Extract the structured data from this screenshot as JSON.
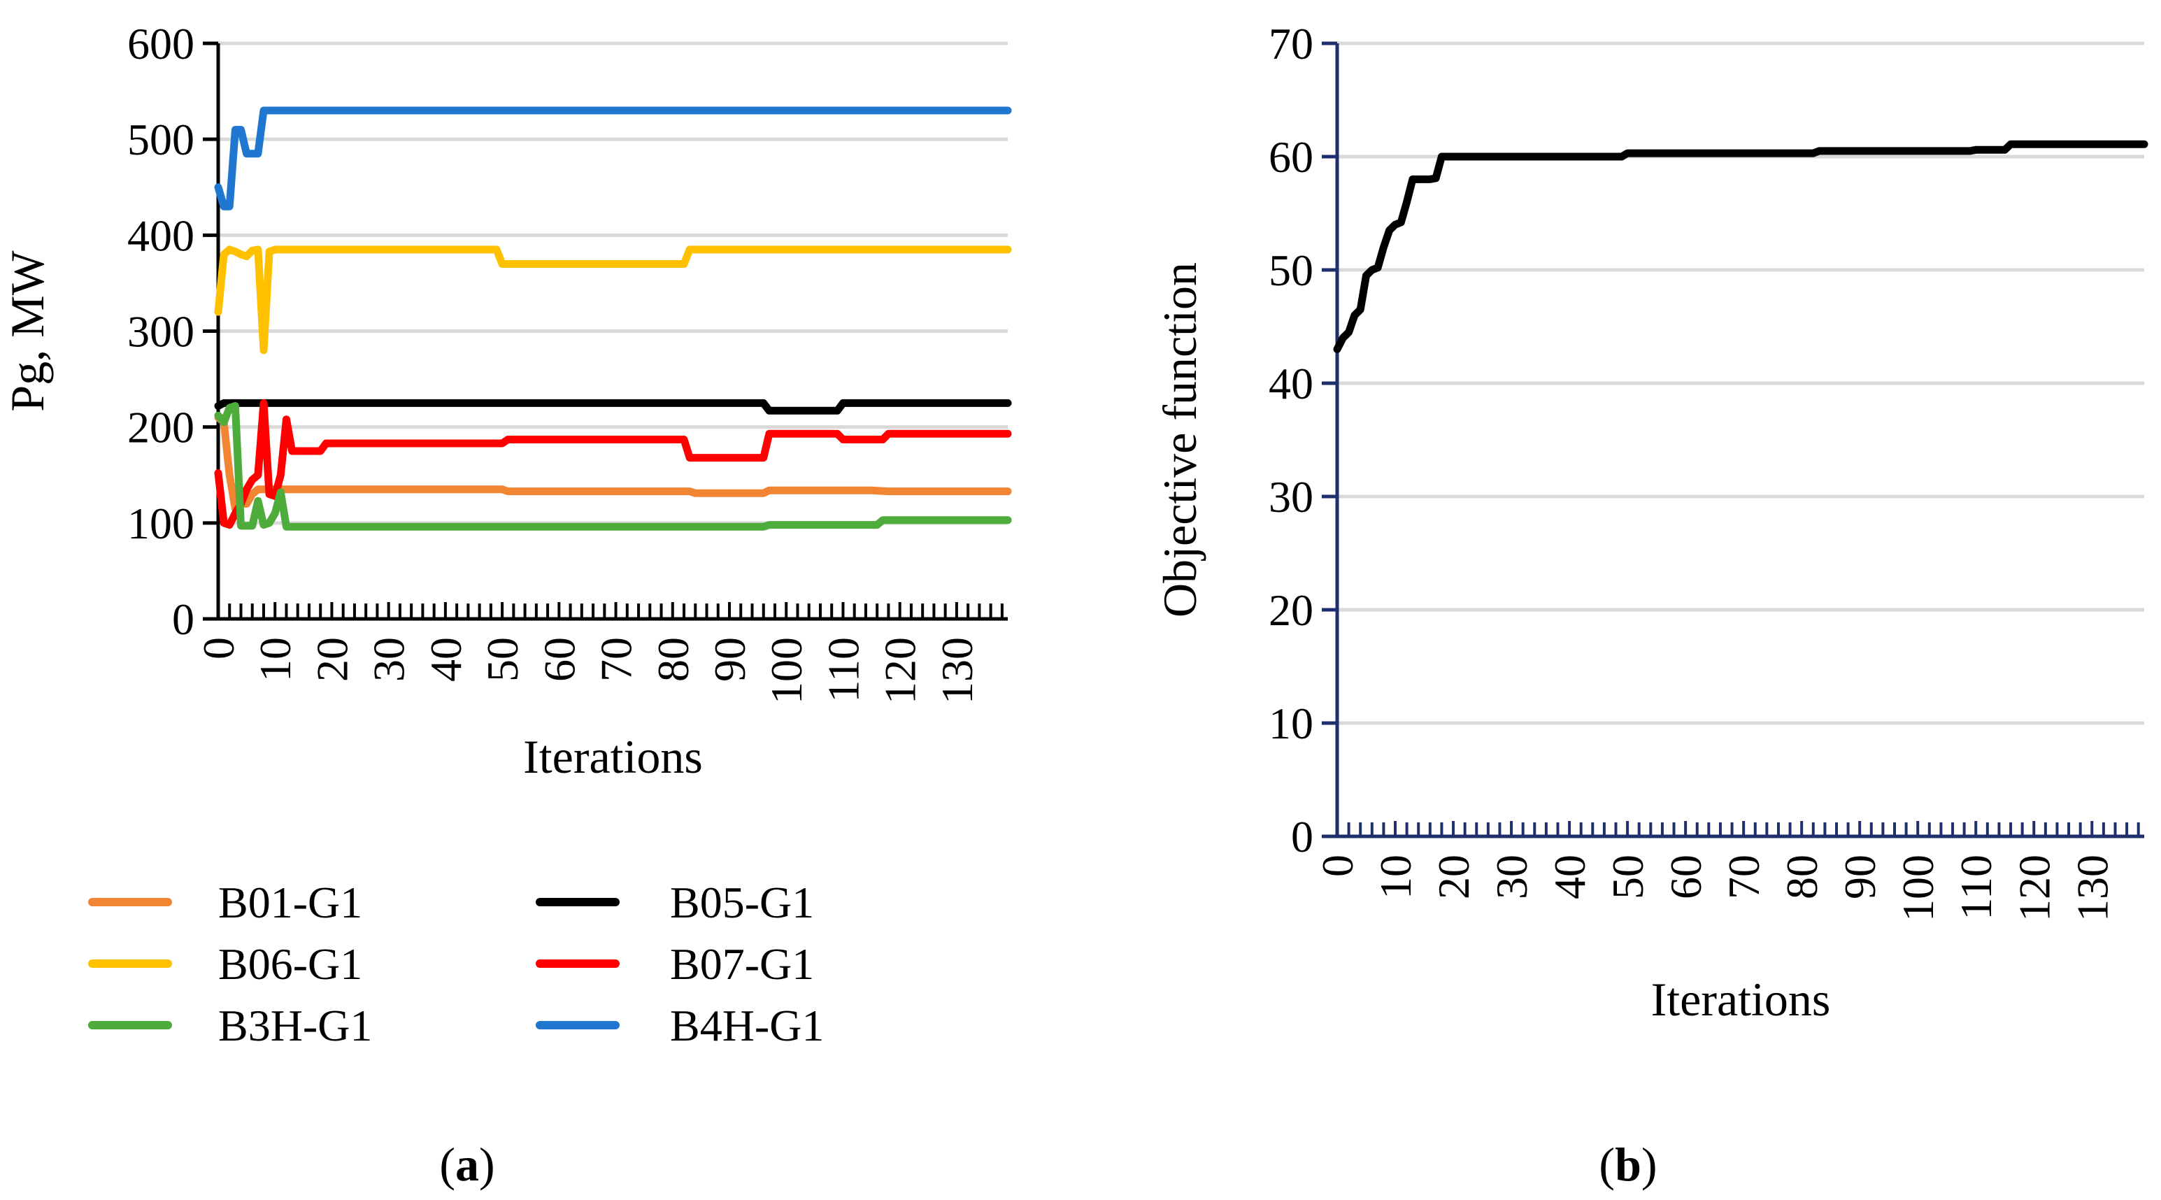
{
  "chart_data": [
    {
      "type": "line",
      "panel": "a",
      "caption": {
        "open": "(",
        "letter": "a",
        "close": ")"
      },
      "title": "",
      "xlabel": "Iterations",
      "ylabel": "Pg,  MW",
      "xlim": [
        0,
        139
      ],
      "ylim": [
        0,
        600
      ],
      "yticks": [
        0,
        100,
        200,
        300,
        400,
        500,
        600
      ],
      "xticks": [
        0,
        10,
        20,
        30,
        40,
        50,
        60,
        70,
        80,
        90,
        100,
        110,
        120,
        130
      ],
      "grid": true,
      "legend_position": "bottom",
      "series": [
        {
          "name": "B01-G1",
          "color": "#f28533",
          "points": [
            [
              0,
              210
            ],
            [
              1,
              205
            ],
            [
              2,
              150
            ],
            [
              3,
              115
            ],
            [
              4,
              120
            ],
            [
              5,
              120
            ],
            [
              6,
              130
            ],
            [
              7,
              135
            ],
            [
              8,
              135
            ],
            [
              12,
              135
            ],
            [
              50,
              135
            ],
            [
              51,
              133
            ],
            [
              83,
              133
            ],
            [
              84,
              131
            ],
            [
              96,
              131
            ],
            [
              97,
              134
            ],
            [
              115,
              134
            ],
            [
              118,
              133
            ],
            [
              139,
              133
            ]
          ]
        },
        {
          "name": "B05-G1",
          "color": "#000000",
          "points": [
            [
              0,
              222
            ],
            [
              1,
              225
            ],
            [
              96,
              225
            ],
            [
              97,
              217
            ],
            [
              109,
              217
            ],
            [
              110,
              225
            ],
            [
              139,
              225
            ]
          ]
        },
        {
          "name": "B06-G1",
          "color": "#ffc000",
          "points": [
            [
              0,
              320
            ],
            [
              1,
              380
            ],
            [
              2,
              385
            ],
            [
              3,
              383
            ],
            [
              4,
              380
            ],
            [
              5,
              378
            ],
            [
              6,
              384
            ],
            [
              7,
              385
            ],
            [
              8,
              280
            ],
            [
              9,
              383
            ],
            [
              10,
              385
            ],
            [
              49,
              385
            ],
            [
              50,
              370
            ],
            [
              82,
              370
            ],
            [
              83,
              385
            ],
            [
              139,
              385
            ]
          ]
        },
        {
          "name": "B07-G1",
          "color": "#ff0000",
          "points": [
            [
              0,
              152
            ],
            [
              1,
              100
            ],
            [
              2,
              98
            ],
            [
              3,
              110
            ],
            [
              4,
              120
            ],
            [
              5,
              135
            ],
            [
              6,
              145
            ],
            [
              7,
              150
            ],
            [
              8,
              225
            ],
            [
              9,
              130
            ],
            [
              10,
              128
            ],
            [
              11,
              150
            ],
            [
              12,
              208
            ],
            [
              13,
              175
            ],
            [
              18,
              175
            ],
            [
              19,
              183
            ],
            [
              50,
              183
            ],
            [
              51,
              187
            ],
            [
              82,
              187
            ],
            [
              83,
              168
            ],
            [
              96,
              168
            ],
            [
              97,
              193
            ],
            [
              109,
              193
            ],
            [
              110,
              187
            ],
            [
              117,
              187
            ],
            [
              118,
              193
            ],
            [
              139,
              193
            ]
          ]
        },
        {
          "name": "B3H-G1",
          "color": "#4eac3c",
          "points": [
            [
              0,
              212
            ],
            [
              1,
              205
            ],
            [
              2,
              220
            ],
            [
              3,
              222
            ],
            [
              4,
              97
            ],
            [
              5,
              97
            ],
            [
              6,
              97
            ],
            [
              7,
              123
            ],
            [
              8,
              98
            ],
            [
              9,
              100
            ],
            [
              10,
              110
            ],
            [
              11,
              132
            ],
            [
              12,
              96
            ],
            [
              60,
              96
            ],
            [
              96,
              96
            ],
            [
              97,
              98
            ],
            [
              116,
              98
            ],
            [
              117,
              103
            ],
            [
              139,
              103
            ]
          ]
        },
        {
          "name": "B4H-G1",
          "color": "#1f77d0",
          "points": [
            [
              0,
              450
            ],
            [
              1,
              430
            ],
            [
              2,
              430
            ],
            [
              3,
              510
            ],
            [
              4,
              510
            ],
            [
              5,
              485
            ],
            [
              6,
              485
            ],
            [
              7,
              485
            ],
            [
              8,
              530
            ],
            [
              139,
              530
            ]
          ]
        }
      ]
    },
    {
      "type": "line",
      "panel": "b",
      "caption": {
        "open": "(",
        "letter": "b",
        "close": ")"
      },
      "title": "",
      "xlabel": "Iterations",
      "ylabel": "Objective function",
      "xlim": [
        0,
        139
      ],
      "ylim": [
        0,
        70
      ],
      "yticks": [
        0,
        10,
        20,
        30,
        40,
        50,
        60,
        70
      ],
      "xticks": [
        0,
        10,
        20,
        30,
        40,
        50,
        60,
        70,
        80,
        90,
        100,
        110,
        120,
        130
      ],
      "grid": true,
      "series": [
        {
          "name": "Objective",
          "color": "#000000",
          "points": [
            [
              0,
              43
            ],
            [
              1,
              44
            ],
            [
              2,
              44.5
            ],
            [
              3,
              46
            ],
            [
              4,
              46.5
            ],
            [
              5,
              49.5
            ],
            [
              6,
              50
            ],
            [
              7,
              50.2
            ],
            [
              8,
              52
            ],
            [
              9,
              53.5
            ],
            [
              10,
              54
            ],
            [
              11,
              54.2
            ],
            [
              12,
              56
            ],
            [
              13,
              58
            ],
            [
              14,
              58
            ],
            [
              15,
              58
            ],
            [
              16,
              58
            ],
            [
              17,
              58.1
            ],
            [
              18,
              60
            ],
            [
              19,
              60
            ],
            [
              49,
              60
            ],
            [
              50,
              60.3
            ],
            [
              82,
              60.3
            ],
            [
              83,
              60.5
            ],
            [
              109,
              60.5
            ],
            [
              110,
              60.6
            ],
            [
              115,
              60.6
            ],
            [
              116,
              61.1
            ],
            [
              139,
              61.1
            ]
          ]
        }
      ]
    }
  ]
}
